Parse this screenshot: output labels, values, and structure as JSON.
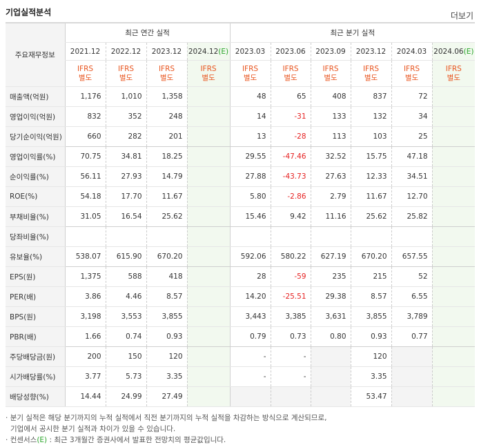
{
  "title": "기업실적분석",
  "more_label": "더보기",
  "header": {
    "row_label": "주요재무정보",
    "annual_label": "최근 연간 실적",
    "quarter_label": "최근 분기 실적",
    "periods": [
      {
        "label": "2021.12",
        "est": false
      },
      {
        "label": "2022.12",
        "est": false
      },
      {
        "label": "2023.12",
        "est": false
      },
      {
        "label": "2024.12",
        "est": true
      },
      {
        "label": "2023.03",
        "est": false
      },
      {
        "label": "2023.06",
        "est": false
      },
      {
        "label": "2023.09",
        "est": false
      },
      {
        "label": "2023.12",
        "est": false
      },
      {
        "label": "2024.03",
        "est": false
      },
      {
        "label": "2024.06",
        "est": true
      }
    ],
    "est_mark": "(E)",
    "ifrs_line1": "IFRS",
    "ifrs_line2": "별도"
  },
  "rows": [
    {
      "label": "매출액(억원)",
      "values": [
        "1,176",
        "1,010",
        "1,358",
        "",
        "48",
        "65",
        "408",
        "837",
        "72",
        ""
      ]
    },
    {
      "label": "영업이익(억원)",
      "values": [
        "832",
        "352",
        "248",
        "",
        "14",
        "-31",
        "133",
        "132",
        "34",
        ""
      ]
    },
    {
      "label": "당기순이익(억원)",
      "values": [
        "660",
        "282",
        "201",
        "",
        "13",
        "-28",
        "113",
        "103",
        "25",
        ""
      ]
    },
    {
      "label": "영업이익률(%)",
      "values": [
        "70.75",
        "34.81",
        "18.25",
        "",
        "29.55",
        "-47.46",
        "32.52",
        "15.75",
        "47.18",
        ""
      ]
    },
    {
      "label": "순이익률(%)",
      "values": [
        "56.11",
        "27.93",
        "14.79",
        "",
        "27.88",
        "-43.73",
        "27.63",
        "12.33",
        "34.51",
        ""
      ]
    },
    {
      "label": "ROE(%)",
      "values": [
        "54.18",
        "17.70",
        "11.67",
        "",
        "5.80",
        "-2.86",
        "2.79",
        "11.67",
        "12.70",
        ""
      ]
    },
    {
      "label": "부채비율(%)",
      "values": [
        "31.05",
        "16.54",
        "25.62",
        "",
        "15.46",
        "9.42",
        "11.16",
        "25.62",
        "25.82",
        ""
      ]
    },
    {
      "label": "당좌비율(%)",
      "values": [
        "",
        "",
        "",
        "",
        "",
        "",
        "",
        "",
        "",
        ""
      ]
    },
    {
      "label": "유보율(%)",
      "values": [
        "538.07",
        "615.90",
        "670.20",
        "",
        "592.06",
        "580.22",
        "627.19",
        "670.20",
        "657.55",
        ""
      ]
    },
    {
      "label": "EPS(원)",
      "values": [
        "1,375",
        "588",
        "418",
        "",
        "28",
        "-59",
        "235",
        "215",
        "52",
        ""
      ]
    },
    {
      "label": "PER(배)",
      "values": [
        "3.86",
        "4.46",
        "8.57",
        "",
        "14.20",
        "-25.51",
        "29.38",
        "8.57",
        "6.55",
        ""
      ]
    },
    {
      "label": "BPS(원)",
      "values": [
        "3,198",
        "3,553",
        "3,855",
        "",
        "3,443",
        "3,385",
        "3,631",
        "3,855",
        "3,789",
        ""
      ]
    },
    {
      "label": "PBR(배)",
      "values": [
        "1.66",
        "0.74",
        "0.93",
        "",
        "0.79",
        "0.73",
        "0.80",
        "0.93",
        "0.77",
        ""
      ]
    },
    {
      "label": "주당배당금(원)",
      "values": [
        "200",
        "150",
        "120",
        "",
        "-",
        "-",
        "",
        "120",
        "",
        ""
      ]
    },
    {
      "label": "시가배당률(%)",
      "values": [
        "3.77",
        "5.73",
        "3.35",
        "",
        "-",
        "-",
        "",
        "3.35",
        "",
        ""
      ]
    },
    {
      "label": "배당성향(%)",
      "values": [
        "14.44",
        "24.99",
        "27.49",
        "",
        "",
        "",
        "",
        "53.47",
        "",
        ""
      ]
    }
  ],
  "notes": {
    "line1": "분기 실적은 해당 분기까지의 누적 실적에서 직전 분기까지의 누적 실적을 차감하는 방식으로 계산되므로,",
    "line2": "기업에서 공시한 분기 실적과 차이가 있을 수 있습니다.",
    "line3_prefix": "컨센서스",
    "line3_mark": "(E)",
    "line3_suffix": ": 최근 3개월간 증권사에서 발표한 전망치의 평균값입니다."
  },
  "colors": {
    "negative": "#e62020",
    "ifrs": "#e8541e",
    "estimate": "#2aa52a",
    "estimate_bg": "#f2f9ef"
  }
}
